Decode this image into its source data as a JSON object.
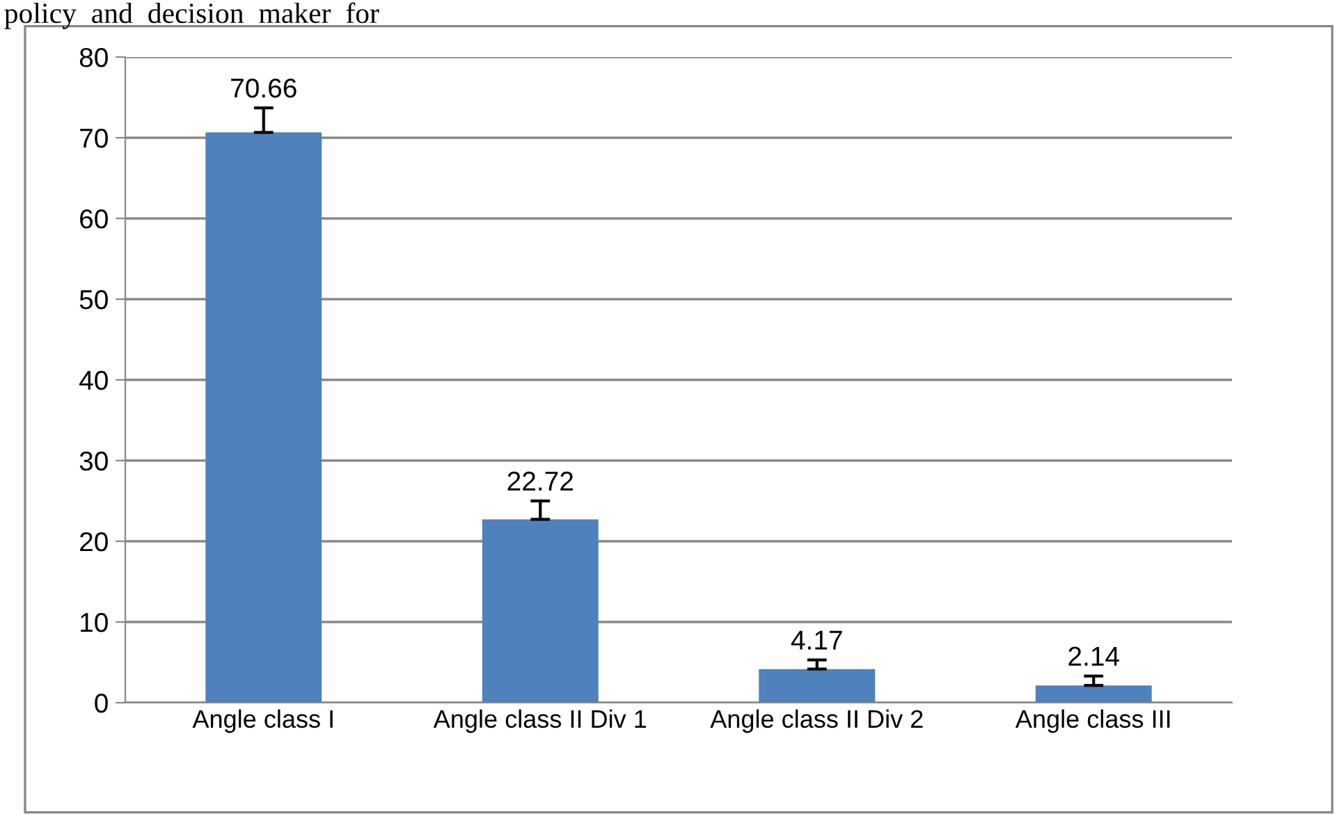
{
  "chart_data": {
    "type": "bar",
    "categories": [
      "Angle class I",
      "Angle class II Div 1",
      "Angle class II Div 2",
      "Angle class III"
    ],
    "values": [
      70.66,
      22.72,
      4.17,
      2.14
    ],
    "errors": [
      [
        70.66,
        73.7
      ],
      [
        22.72,
        25.0
      ],
      [
        4.17,
        5.3
      ],
      [
        2.14,
        3.3
      ]
    ],
    "color": "#4f81bd",
    "data_labels": true,
    "ylim": [
      0,
      80
    ],
    "yticks": [
      0,
      10,
      20,
      30,
      40,
      50,
      60,
      70,
      80
    ],
    "grid": "y",
    "legend": false,
    "annotations": [
      "policy  and  decision  maker  for"
    ]
  }
}
